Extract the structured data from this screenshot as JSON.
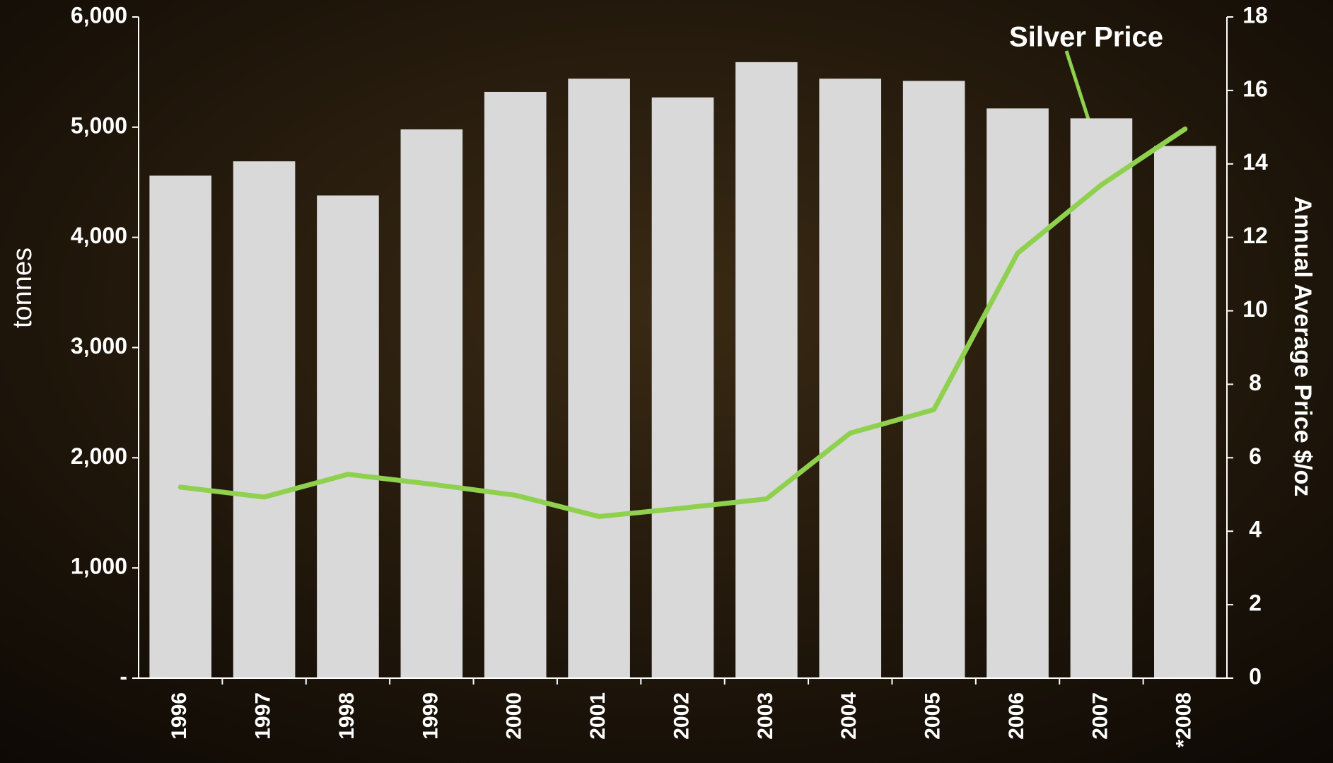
{
  "chart_data": {
    "type": "bar_line",
    "categories": [
      "1996",
      "1997",
      "1998",
      "1999",
      "2000",
      "2001",
      "2002",
      "2003",
      "2004",
      "2005",
      "2006",
      "2007",
      "*2008"
    ],
    "series": [
      {
        "name": "tonnes",
        "type": "bar",
        "color": "#d9d9d9",
        "values": [
          4560,
          4690,
          4380,
          4980,
          5320,
          5440,
          5270,
          5590,
          5440,
          5420,
          5170,
          5080,
          4830
        ]
      },
      {
        "name": "Silver Price",
        "type": "line",
        "axis": "y2",
        "color": "#8fd14f",
        "values": [
          5.2,
          4.93,
          5.55,
          5.28,
          4.98,
          4.4,
          4.63,
          4.88,
          6.67,
          7.31,
          11.57,
          13.43,
          14.95
        ]
      }
    ],
    "ylabel": "tonnes",
    "y2label": "Annual Average Price  $/oz",
    "annotation": "Silver Price",
    "ylim": [
      0,
      6000
    ],
    "yticks": [
      {
        "value": 0,
        "label": "-"
      },
      {
        "value": 1000,
        "label": "1,000"
      },
      {
        "value": 2000,
        "label": "2,000"
      },
      {
        "value": 3000,
        "label": "3,000"
      },
      {
        "value": 4000,
        "label": "4,000"
      },
      {
        "value": 5000,
        "label": "5,000"
      },
      {
        "value": 6000,
        "label": "6,000"
      }
    ],
    "y2lim": [
      0,
      18
    ],
    "y2ticks": [
      0,
      2,
      4,
      6,
      8,
      10,
      12,
      14,
      16,
      18
    ]
  }
}
